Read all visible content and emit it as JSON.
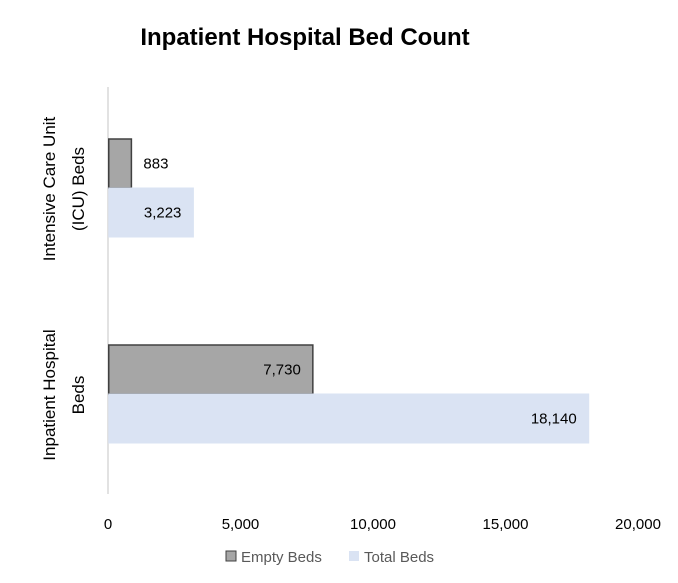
{
  "chart_data": {
    "type": "bar",
    "orientation": "horizontal",
    "title": "Inpatient Hospital Bed Count",
    "categories": [
      "Intensive Care Unit (ICU) Beds",
      "Inpatient Hospital Beds"
    ],
    "category_lines": [
      [
        "Intensive Care Unit",
        "(ICU) Beds"
      ],
      [
        "Inpatient Hospital",
        "Beds"
      ]
    ],
    "series": [
      {
        "name": "Empty Beds",
        "values": [
          883,
          7730
        ],
        "labels": [
          "883",
          "7,730"
        ],
        "color": "#a6a6a6",
        "stroke": "#404040"
      },
      {
        "name": "Total Beds",
        "values": [
          3223,
          18140
        ],
        "labels": [
          "3,223",
          "18,140"
        ],
        "color": "#dae3f3",
        "stroke": "#dae3f3"
      }
    ],
    "xlim": [
      0,
      20000
    ],
    "xticks": [
      0,
      5000,
      10000,
      15000,
      20000
    ],
    "xtick_labels": [
      "0",
      "5,000",
      "10,000",
      "15,000",
      "20,000"
    ],
    "grid": false,
    "legend_position": "bottom"
  }
}
